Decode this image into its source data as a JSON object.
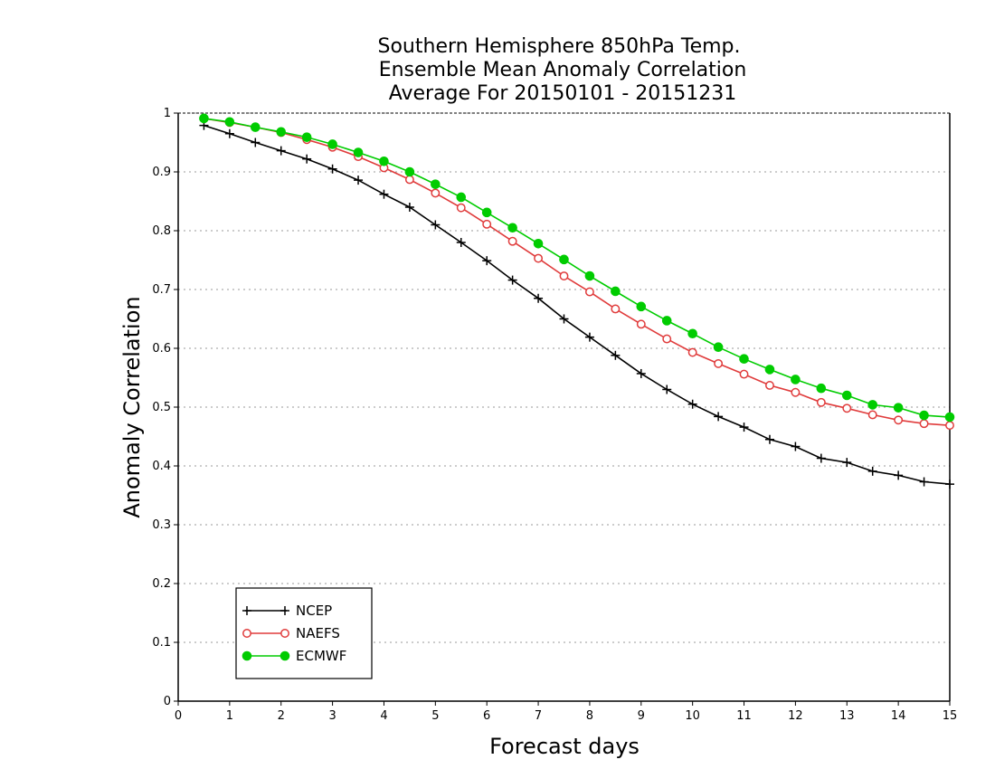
{
  "chart_data": {
    "type": "line",
    "title": [
      "Southern Hemisphere 850hPa Temp.",
      "Ensemble Mean Anomaly Correlation",
      "Average For 20150101 - 20151231"
    ],
    "xlabel": "Forecast days",
    "ylabel": "Anomaly Correlation",
    "xlim": [
      0,
      15
    ],
    "ylim": [
      0,
      1
    ],
    "xticks": [
      "0",
      "1",
      "2",
      "3",
      "4",
      "5",
      "6",
      "7",
      "8",
      "9",
      "10",
      "11",
      "12",
      "13",
      "14",
      "15"
    ],
    "yticks": [
      "0",
      "0.1",
      "0.2",
      "0.3",
      "0.4",
      "0.5",
      "0.6",
      "0.7",
      "0.8",
      "0.9",
      "1"
    ],
    "grid": "horizontal dotted",
    "legend_position": "bottom-left",
    "x": [
      0.5,
      1,
      1.5,
      2,
      2.5,
      3,
      3.5,
      4,
      4.5,
      5,
      5.5,
      6,
      6.5,
      7,
      7.5,
      8,
      8.5,
      9,
      9.5,
      10,
      10.5,
      11,
      11.5,
      12,
      12.5,
      13,
      13.5,
      14,
      14.5,
      15
    ],
    "series": [
      {
        "name": "NCEP",
        "color": "#000000",
        "marker": "plus",
        "values": [
          0.979,
          0.965,
          0.95,
          0.936,
          0.922,
          0.905,
          0.886,
          0.862,
          0.84,
          0.81,
          0.78,
          0.749,
          0.716,
          0.685,
          0.65,
          0.619,
          0.588,
          0.557,
          0.53,
          0.505,
          0.484,
          0.466,
          0.445,
          0.433,
          0.413,
          0.406,
          0.391,
          0.384,
          0.373,
          0.369
        ]
      },
      {
        "name": "NAEFS",
        "color": "#e03c3c",
        "marker": "open-circle",
        "values": [
          0.991,
          0.984,
          0.976,
          0.967,
          0.955,
          0.942,
          0.926,
          0.907,
          0.887,
          0.864,
          0.839,
          0.811,
          0.782,
          0.753,
          0.723,
          0.696,
          0.667,
          0.641,
          0.616,
          0.593,
          0.574,
          0.556,
          0.537,
          0.525,
          0.508,
          0.498,
          0.487,
          0.478,
          0.472,
          0.469
        ]
      },
      {
        "name": "ECMWF",
        "color": "#00cc00",
        "marker": "filled-circle",
        "values": [
          0.991,
          0.985,
          0.976,
          0.968,
          0.959,
          0.947,
          0.933,
          0.918,
          0.9,
          0.879,
          0.857,
          0.831,
          0.805,
          0.778,
          0.751,
          0.723,
          0.697,
          0.671,
          0.647,
          0.625,
          0.602,
          0.582,
          0.564,
          0.547,
          0.532,
          0.52,
          0.504,
          0.499,
          0.486,
          0.483
        ]
      }
    ]
  }
}
